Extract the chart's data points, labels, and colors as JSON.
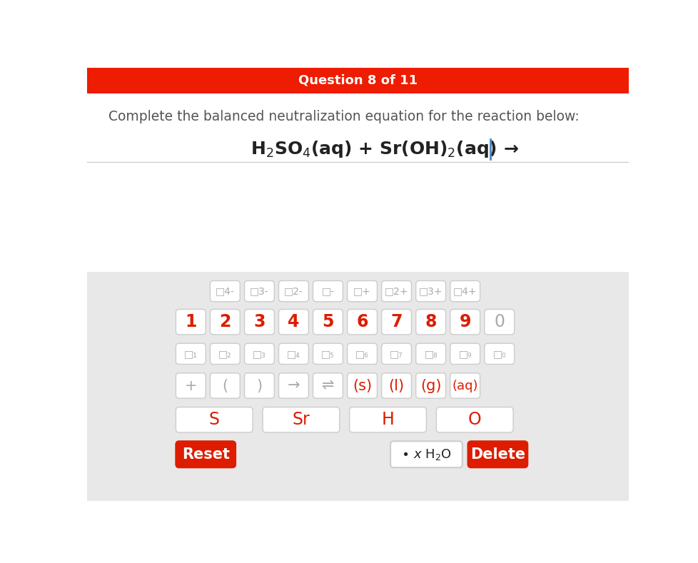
{
  "title": "Question 8 of 11",
  "title_bg": "#ee1c00",
  "title_color": "#ffffff",
  "instruction": "Complete the balanced neutralization equation for the reaction below:",
  "bg_white": "#ffffff",
  "bg_gray": "#e8e8e8",
  "red_color": "#dd1c00",
  "gray_text": "#aaaaaa",
  "charges": [
    "4-",
    "3-",
    "2-",
    "-",
    "+",
    "2+",
    "3+",
    "4+"
  ],
  "numbers": [
    "1",
    "2",
    "3",
    "4",
    "5",
    "6",
    "7",
    "8",
    "9",
    "0"
  ],
  "subs": [
    "₁",
    "₂",
    "₃",
    "₄",
    "₅",
    "₆",
    "₇",
    "₈",
    "₉",
    "₀"
  ],
  "ops": [
    "+",
    "(",
    ")",
    "→",
    "⇌",
    "(s)",
    "(l)",
    "(g)",
    "(aq)"
  ],
  "elements": [
    "S",
    "Sr",
    "H",
    "O"
  ],
  "reset_btn": "Reset",
  "delete_btn": "Delete"
}
